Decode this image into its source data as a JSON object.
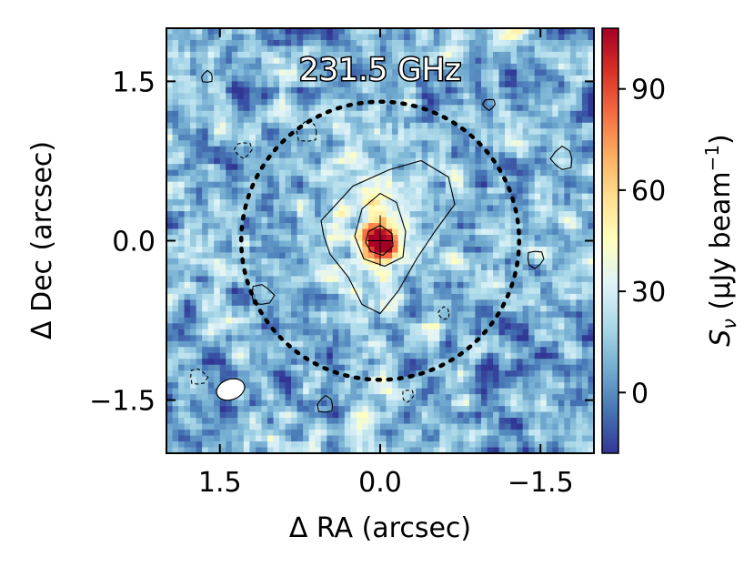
{
  "chart_data": {
    "type": "heatmap",
    "title": "231.5 GHz",
    "xlabel": "Δ RA (arcsec)",
    "ylabel": "Δ Dec (arcsec)",
    "colorbar_label": "S_ν (μJy beam⁻¹)",
    "colorbar_label_parts": {
      "symbol": "S",
      "subscript": "ν",
      "unit_open": " (μJy beam",
      "superscript": "−1",
      "unit_close": ")"
    },
    "xlim": [
      2.0,
      -2.0
    ],
    "ylim": [
      -2.0,
      2.0
    ],
    "x_ticks": [
      {
        "value": 1.5,
        "label": "1.5"
      },
      {
        "value": 0.0,
        "label": "0.0"
      },
      {
        "value": -1.5,
        "label": "−1.5"
      }
    ],
    "y_ticks": [
      {
        "value": 1.5,
        "label": "1.5"
      },
      {
        "value": 0.0,
        "label": "0.0"
      },
      {
        "value": -1.5,
        "label": "−1.5"
      }
    ],
    "colorbar_range": [
      -18,
      108
    ],
    "colorbar_ticks": [
      {
        "value": 0,
        "label": "0"
      },
      {
        "value": 30,
        "label": "30"
      },
      {
        "value": 60,
        "label": "60"
      },
      {
        "value": 90,
        "label": "90"
      }
    ],
    "colormap": [
      "#313695",
      "#4575b4",
      "#74add1",
      "#abd9e9",
      "#e0f3f8",
      "#ffffbf",
      "#fee090",
      "#fdae61",
      "#f46d43",
      "#d73027",
      "#a50026"
    ],
    "source": {
      "ra": 0.0,
      "dec": 0.0,
      "peak": 105,
      "extension_north": {
        "ra": 0.1,
        "dec": 0.45,
        "flux": 28
      }
    },
    "dotted_circle": {
      "center_ra": 0.0,
      "center_dec": 0.0,
      "radius_arcsec": 1.3,
      "color": "#000000"
    },
    "beam": {
      "ra": 1.4,
      "dec": -1.4,
      "major_arcsec": 0.27,
      "minor_arcsec": 0.19,
      "color": "#ffffff"
    },
    "grid": false
  }
}
